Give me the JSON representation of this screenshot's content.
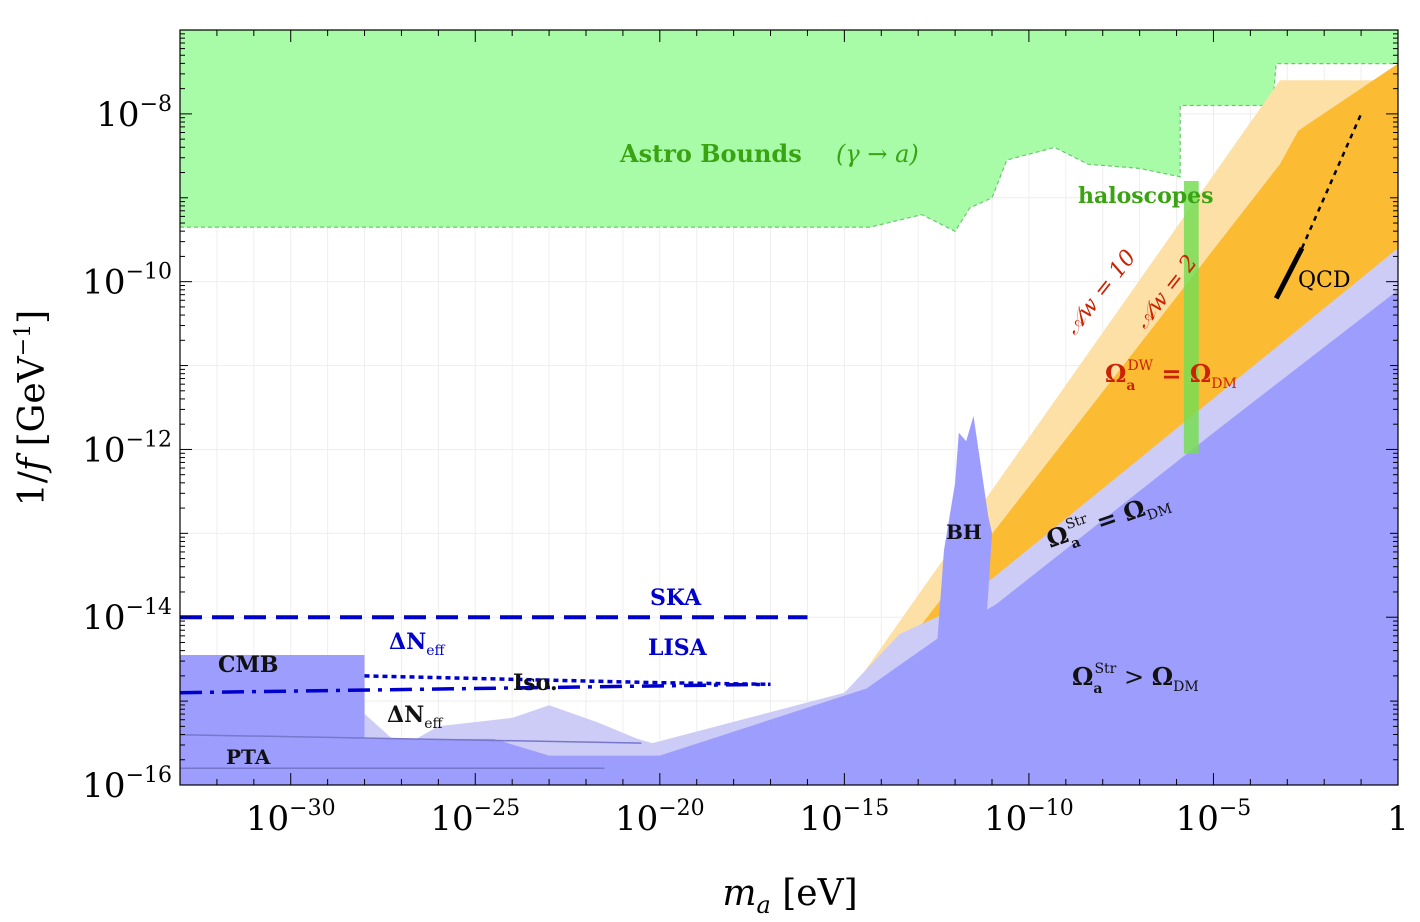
{
  "chart_data": {
    "type": "area",
    "xlabel": "m_a [eV]",
    "ylabel": "1/f [GeV^-1]",
    "x_scale": "log",
    "y_scale": "log",
    "xlim_log10_eV": [
      -33,
      0
    ],
    "ylim_log10_GeV": [
      -16,
      -7
    ],
    "x_ticks": [
      {
        "log": -30,
        "base": "10",
        "exp": "−30"
      },
      {
        "log": -25,
        "base": "10",
        "exp": "−25"
      },
      {
        "log": -20,
        "base": "10",
        "exp": "−20"
      },
      {
        "log": -15,
        "base": "10",
        "exp": "−15"
      },
      {
        "log": -10,
        "base": "10",
        "exp": "−10"
      },
      {
        "log": -5,
        "base": "10",
        "exp": "−5"
      },
      {
        "log": 0,
        "base": "1",
        "exp": ""
      }
    ],
    "y_ticks": [
      {
        "log": -8,
        "base": "10",
        "exp": "−8"
      },
      {
        "log": -10,
        "base": "10",
        "exp": "−10"
      },
      {
        "log": -12,
        "base": "10",
        "exp": "−12"
      },
      {
        "log": -14,
        "base": "10",
        "exp": "−14"
      },
      {
        "log": -16,
        "base": "10",
        "exp": "−16"
      }
    ],
    "grid": true,
    "colors": {
      "astro": "#a8fca8",
      "haloscope_band": "#77dd55",
      "orange_light": "#fde0a6",
      "orange": "#fbbb33",
      "blue_light": "#ccccf6",
      "blue": "#9d9dfd",
      "blue_line": "#0000cc",
      "red_label": "#cc2200",
      "green_label": "#3aa312"
    },
    "regions": [
      {
        "name": "Astro Bounds",
        "points": [
          [
            -33,
            -9.35
          ],
          [
            -14.3,
            -9.35
          ],
          [
            -12.9,
            -9.2
          ],
          [
            -12.0,
            -9.4
          ],
          [
            -11.6,
            -9.12
          ],
          [
            -11.0,
            -9.0
          ],
          [
            -10.6,
            -8.55
          ],
          [
            -9.3,
            -8.4
          ],
          [
            -8.4,
            -8.6
          ],
          [
            -7.0,
            -8.65
          ],
          [
            -5.9,
            -8.75
          ],
          [
            -5.9,
            -7.9
          ],
          [
            -3.4,
            -7.9
          ],
          [
            -3.3,
            -7.4
          ],
          [
            0,
            -7.4
          ],
          [
            0,
            -7
          ],
          [
            -33,
            -7
          ]
        ]
      },
      {
        "name": "A_w = 10 band",
        "points": [
          [
            -15.1,
            -15.05
          ],
          [
            -3.2,
            -7.6
          ],
          [
            0,
            -7.6
          ],
          [
            0,
            -9.2
          ],
          [
            -13.2,
            -14.25
          ],
          [
            -14.0,
            -14.6
          ]
        ]
      },
      {
        "name": "Omega_DW = Omega_DM",
        "points": [
          [
            -13.2,
            -14.25
          ],
          [
            -3.2,
            -8.6
          ],
          [
            -2.7,
            -8.2
          ],
          [
            0,
            -7.4
          ],
          [
            0,
            -10.3
          ],
          [
            -6.3,
            -12.3
          ]
        ]
      },
      {
        "name": "Omega_Str = Omega_DM band",
        "points": [
          [
            -33,
            -15.15
          ],
          [
            -28.0,
            -15.15
          ],
          [
            -27.0,
            -15.55
          ],
          [
            -26.0,
            -15.3
          ],
          [
            -24.0,
            -15.2
          ],
          [
            -23.0,
            -15.05
          ],
          [
            -21.7,
            -15.25
          ],
          [
            -20.6,
            -15.45
          ],
          [
            -20.2,
            -15.5
          ],
          [
            -15.0,
            -14.9
          ],
          [
            -13.5,
            -14.2
          ],
          [
            -12.0,
            -13.9
          ],
          [
            0,
            -9.6
          ],
          [
            0,
            -16
          ],
          [
            -33,
            -16
          ]
        ]
      },
      {
        "name": "Omega_Str > Omega_DM",
        "points": [
          [
            -33,
            -15.45
          ],
          [
            -28.0,
            -15.45
          ],
          [
            -26.5,
            -15.45
          ],
          [
            -24.5,
            -15.45
          ],
          [
            -23.0,
            -15.65
          ],
          [
            -20.0,
            -15.65
          ],
          [
            -14.4,
            -14.85
          ],
          [
            -12.3,
            -14.2
          ],
          [
            -10.9,
            -13.85
          ],
          [
            -5.0,
            -11.8
          ],
          [
            0,
            -10.1
          ],
          [
            0,
            -16
          ],
          [
            -33,
            -16
          ]
        ]
      },
      {
        "name": "BH",
        "points": [
          [
            -12.5,
            -14.4
          ],
          [
            -12.3,
            -13.2
          ],
          [
            -12.0,
            -12.4
          ],
          [
            -11.9,
            -11.8
          ],
          [
            -11.7,
            -11.9
          ],
          [
            -11.5,
            -11.6
          ],
          [
            -11.3,
            -12.2
          ],
          [
            -11.1,
            -12.8
          ],
          [
            -11.0,
            -13.0
          ],
          [
            -11.1,
            -13.7
          ],
          [
            -11.2,
            -14.3
          ],
          [
            -12.5,
            -14.3
          ]
        ]
      },
      {
        "name": "CMB",
        "points": [
          [
            -33,
            -14.45
          ],
          [
            -28.0,
            -14.45
          ],
          [
            -28.0,
            -15.5
          ],
          [
            -33,
            -15.5
          ]
        ]
      },
      {
        "name": "haloscopes band",
        "points": [
          [
            -5.8,
            -8.8
          ],
          [
            -5.4,
            -8.8
          ],
          [
            -5.4,
            -12.05
          ],
          [
            -5.8,
            -12.05
          ]
        ]
      }
    ],
    "lines": [
      {
        "name": "SKA",
        "style": "dashed",
        "points": [
          [
            -33,
            -14.0
          ],
          [
            -16.0,
            -14.0
          ]
        ]
      },
      {
        "name": "LISA",
        "style": "dashdot",
        "points": [
          [
            -33,
            -14.9
          ],
          [
            -17.0,
            -14.8
          ]
        ]
      },
      {
        "name": "Delta N_eff",
        "style": "dotted",
        "points": [
          [
            -28.0,
            -14.7
          ],
          [
            -20.0,
            -14.78
          ],
          [
            -17.0,
            -14.8
          ]
        ]
      },
      {
        "name": "Delta N_eff (2)",
        "style": "solid-thin",
        "points": [
          [
            -33,
            -15.4
          ],
          [
            -20.5,
            -15.5
          ]
        ]
      },
      {
        "name": "PTA",
        "style": "solid-thin",
        "points": [
          [
            -33,
            -15.8
          ],
          [
            -21.5,
            -15.8
          ]
        ]
      },
      {
        "name": "QCD",
        "style": "solid-thick",
        "points": [
          [
            -3.3,
            -10.2
          ],
          [
            -2.6,
            -9.6
          ]
        ]
      },
      {
        "name": "QCD extension",
        "style": "dotted",
        "points": [
          [
            -2.6,
            -9.6
          ],
          [
            -1.0,
            -8.0
          ]
        ]
      }
    ],
    "annotations": {
      "astro": "Astro Bounds",
      "astro_process": "(γ → a)",
      "haloscopes": "haloscopes",
      "qcd": "QCD",
      "aw10": "𝒜w = 10",
      "aw2": "𝒜w = 2",
      "omega_dw": "ΩaDW = ΩDM",
      "omega_str_eq": "ΩaStr = ΩDM",
      "omega_str_gt": "ΩaStr > ΩDM",
      "bh": "BH",
      "ska": "SKA",
      "lisa": "LISA",
      "dneff_top": "ΔNeff",
      "dneff_bottom": "ΔNeff",
      "iso": "Iso.",
      "cmb": "CMB",
      "pta": "PTA"
    }
  }
}
